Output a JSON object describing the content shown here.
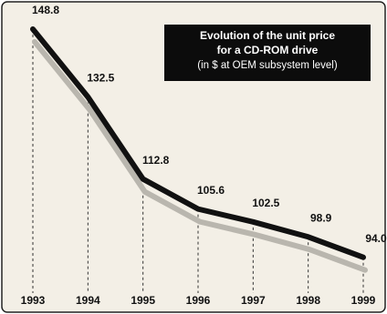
{
  "chart_data": {
    "type": "line",
    "title": [
      "Evolution of the unit price",
      "for a CD-ROM drive"
    ],
    "subtitle": "(in $ at OEM subsystem level)",
    "categories": [
      "1993",
      "1994",
      "1995",
      "1996",
      "1997",
      "1998",
      "1999"
    ],
    "values": [
      148.8,
      132.5,
      112.8,
      105.6,
      102.5,
      98.9,
      94.0
    ],
    "value_labels": [
      "148.8",
      "132.5",
      "112.8",
      "105.6",
      "102.5",
      "98.9",
      "94.0"
    ],
    "color": "#111111",
    "ylim": [
      90,
      150
    ]
  }
}
